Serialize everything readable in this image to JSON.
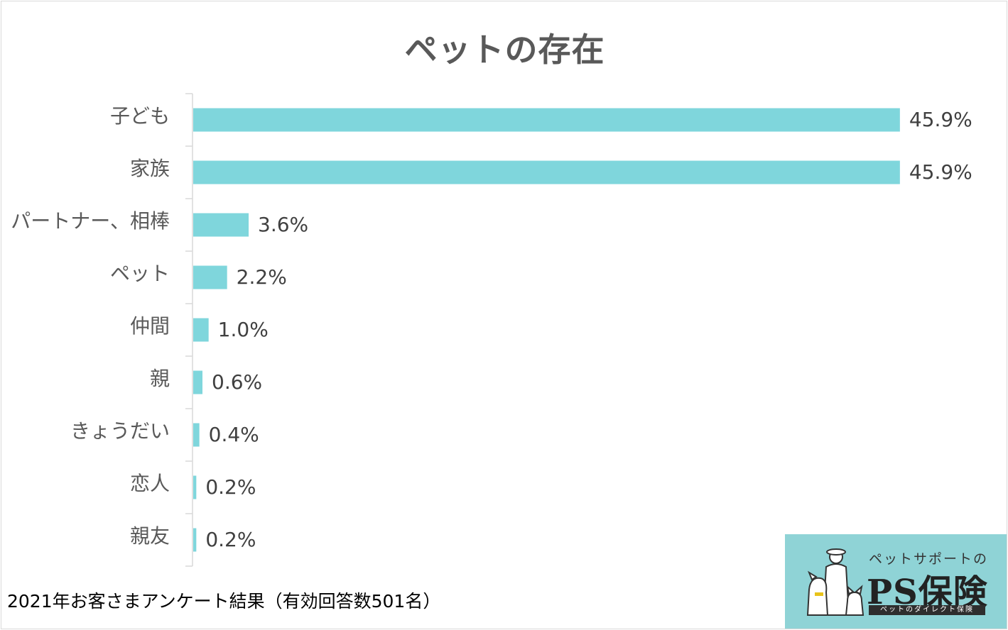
{
  "chart_data": {
    "type": "bar",
    "orientation": "horizontal",
    "title": "ペットの存在",
    "categories": [
      "子ども",
      "家族",
      "パートナー、相棒",
      "ペット",
      "仲間",
      "親",
      "きょうだい",
      "恋人",
      "親友"
    ],
    "values": [
      45.9,
      45.9,
      3.6,
      2.2,
      1.0,
      0.6,
      0.4,
      0.2,
      0.2
    ],
    "data_labels": [
      "45.9%",
      "45.9%",
      "3.6%",
      "2.2%",
      "1.0%",
      "0.6%",
      "0.4%",
      "0.2%",
      "0.2%"
    ],
    "unit": "%",
    "xlim": [
      0,
      46
    ],
    "grid": false,
    "legend": "none",
    "bar_color": "#7fd6dc"
  },
  "footnote": "2021年お客さまアンケート結果（有効回答数501名）",
  "logo": {
    "subtitle": "ペットサポートの",
    "name": "PS保険",
    "tagline": "ペットのダイレクト保険",
    "bg_color": "#8fd3d6"
  }
}
